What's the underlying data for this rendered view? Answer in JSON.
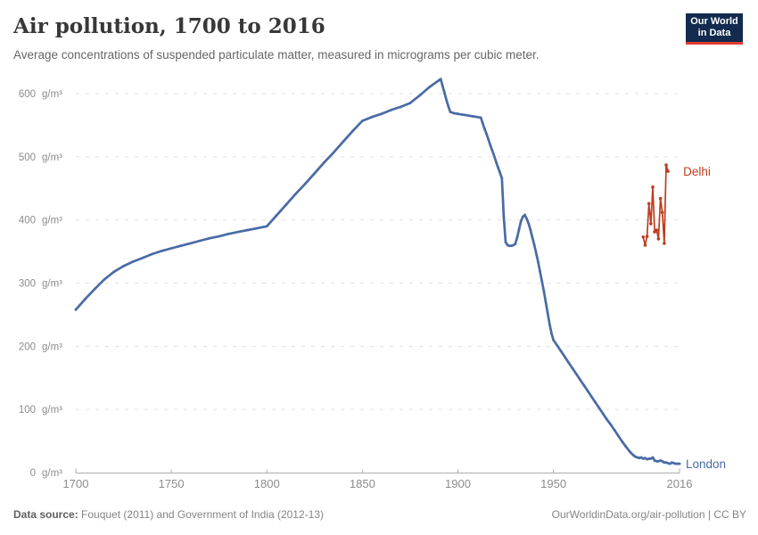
{
  "header": {
    "title": "Air pollution, 1700 to 2016",
    "subtitle": "Average concentrations of suspended particulate matter, measured in micrograms per cubic meter.",
    "logo": {
      "line1": "Our World",
      "line2": "in Data",
      "bg_color": "#122B4E",
      "accent_color": "#E13D32"
    }
  },
  "footer": {
    "source_label": "Data source:",
    "source_text": " Fouquet (2011) and Government of India (2012-13)",
    "credit": "OurWorldinData.org/air-pollution | CC BY"
  },
  "chart_data": {
    "type": "line",
    "title": "Air pollution, 1700 to 2016",
    "subtitle": "Average concentrations of suspended particulate matter, measured in micrograms per cubic meter.",
    "xlabel": "",
    "ylabel": "g/m³",
    "y_tick_suffix": "g/m³",
    "xlim": [
      1700,
      2016
    ],
    "ylim": [
      0,
      600
    ],
    "x_ticks": [
      1700,
      1750,
      1800,
      1850,
      1900,
      1950,
      2016
    ],
    "y_ticks": [
      0,
      100,
      200,
      300,
      400,
      500,
      600
    ],
    "grid": "horizontal-dashed",
    "legend_position": "line-end-labels",
    "colors": {
      "grid": "#e1e1e1",
      "axis": "#adadad",
      "tick_text": "#8c8c8c"
    },
    "series": [
      {
        "name": "London",
        "color": "#4A6BA5",
        "points": [
          [
            1700,
            258
          ],
          [
            1705,
            275
          ],
          [
            1710,
            291
          ],
          [
            1715,
            306
          ],
          [
            1720,
            318
          ],
          [
            1725,
            327
          ],
          [
            1730,
            334
          ],
          [
            1735,
            340
          ],
          [
            1740,
            346
          ],
          [
            1745,
            351
          ],
          [
            1750,
            355
          ],
          [
            1755,
            359
          ],
          [
            1760,
            363
          ],
          [
            1765,
            367
          ],
          [
            1770,
            371
          ],
          [
            1775,
            374
          ],
          [
            1780,
            378
          ],
          [
            1785,
            381
          ],
          [
            1790,
            384
          ],
          [
            1795,
            387
          ],
          [
            1800,
            390
          ],
          [
            1805,
            407
          ],
          [
            1810,
            424
          ],
          [
            1815,
            441
          ],
          [
            1820,
            457
          ],
          [
            1825,
            474
          ],
          [
            1830,
            491
          ],
          [
            1835,
            507
          ],
          [
            1840,
            524
          ],
          [
            1845,
            541
          ],
          [
            1850,
            557
          ],
          [
            1855,
            563
          ],
          [
            1860,
            568
          ],
          [
            1865,
            574
          ],
          [
            1870,
            579
          ],
          [
            1875,
            585
          ],
          [
            1880,
            597
          ],
          [
            1885,
            610
          ],
          [
            1890,
            621
          ],
          [
            1891,
            623
          ],
          [
            1892,
            612
          ],
          [
            1893,
            601
          ],
          [
            1894,
            590
          ],
          [
            1895,
            580
          ],
          [
            1896,
            571
          ],
          [
            1898,
            569
          ],
          [
            1900,
            568
          ],
          [
            1902,
            567
          ],
          [
            1904,
            566
          ],
          [
            1906,
            565
          ],
          [
            1908,
            564
          ],
          [
            1910,
            563
          ],
          [
            1912,
            562
          ],
          [
            1913,
            553
          ],
          [
            1914,
            544
          ],
          [
            1915,
            536
          ],
          [
            1916,
            527
          ],
          [
            1917,
            518
          ],
          [
            1918,
            510
          ],
          [
            1919,
            501
          ],
          [
            1920,
            492
          ],
          [
            1921,
            483
          ],
          [
            1922,
            475
          ],
          [
            1923,
            466
          ],
          [
            1924,
            405
          ],
          [
            1925,
            365
          ],
          [
            1926,
            360
          ],
          [
            1927,
            359
          ],
          [
            1928,
            359
          ],
          [
            1929,
            360
          ],
          [
            1930,
            362
          ],
          [
            1931,
            372
          ],
          [
            1932,
            385
          ],
          [
            1933,
            398
          ],
          [
            1934,
            405
          ],
          [
            1935,
            408
          ],
          [
            1936,
            402
          ],
          [
            1937,
            394
          ],
          [
            1938,
            384
          ],
          [
            1939,
            372
          ],
          [
            1940,
            360
          ],
          [
            1941,
            347
          ],
          [
            1942,
            333
          ],
          [
            1943,
            318
          ],
          [
            1944,
            303
          ],
          [
            1945,
            287
          ],
          [
            1946,
            270
          ],
          [
            1947,
            252
          ],
          [
            1948,
            235
          ],
          [
            1949,
            220
          ],
          [
            1950,
            210
          ],
          [
            1952,
            201
          ],
          [
            1954,
            192
          ],
          [
            1956,
            183
          ],
          [
            1958,
            174
          ],
          [
            1960,
            165
          ],
          [
            1962,
            156
          ],
          [
            1964,
            147
          ],
          [
            1966,
            138
          ],
          [
            1968,
            129
          ],
          [
            1970,
            120
          ],
          [
            1972,
            111
          ],
          [
            1974,
            102
          ],
          [
            1976,
            93
          ],
          [
            1978,
            84
          ],
          [
            1980,
            76
          ],
          [
            1982,
            67
          ],
          [
            1984,
            58
          ],
          [
            1986,
            49
          ],
          [
            1988,
            41
          ],
          [
            1990,
            33
          ],
          [
            1992,
            27
          ],
          [
            1993,
            25
          ],
          [
            1994,
            24
          ],
          [
            1995,
            23
          ],
          [
            1996,
            24
          ],
          [
            1997,
            22
          ],
          [
            1998,
            23
          ],
          [
            1999,
            21
          ],
          [
            2000,
            22
          ],
          [
            2001,
            22
          ],
          [
            2002,
            24
          ],
          [
            2003,
            19
          ],
          [
            2004,
            18
          ],
          [
            2005,
            18
          ],
          [
            2006,
            19
          ],
          [
            2007,
            18
          ],
          [
            2008,
            16
          ],
          [
            2009,
            16
          ],
          [
            2010,
            15
          ],
          [
            2011,
            14
          ],
          [
            2012,
            16
          ],
          [
            2013,
            15
          ],
          [
            2014,
            14
          ],
          [
            2015,
            14
          ],
          [
            2016,
            14
          ]
        ]
      },
      {
        "name": "Delhi",
        "color": "#BE3D1E",
        "points": [
          [
            1997,
            373
          ],
          [
            1998,
            360
          ],
          [
            1999,
            374
          ],
          [
            2000,
            426
          ],
          [
            2001,
            394
          ],
          [
            2002,
            452
          ],
          [
            2003,
            381
          ],
          [
            2004,
            384
          ],
          [
            2005,
            370
          ],
          [
            2006,
            434
          ],
          [
            2007,
            412
          ],
          [
            2008,
            363
          ],
          [
            2009,
            487
          ],
          [
            2010,
            477
          ]
        ]
      }
    ]
  }
}
